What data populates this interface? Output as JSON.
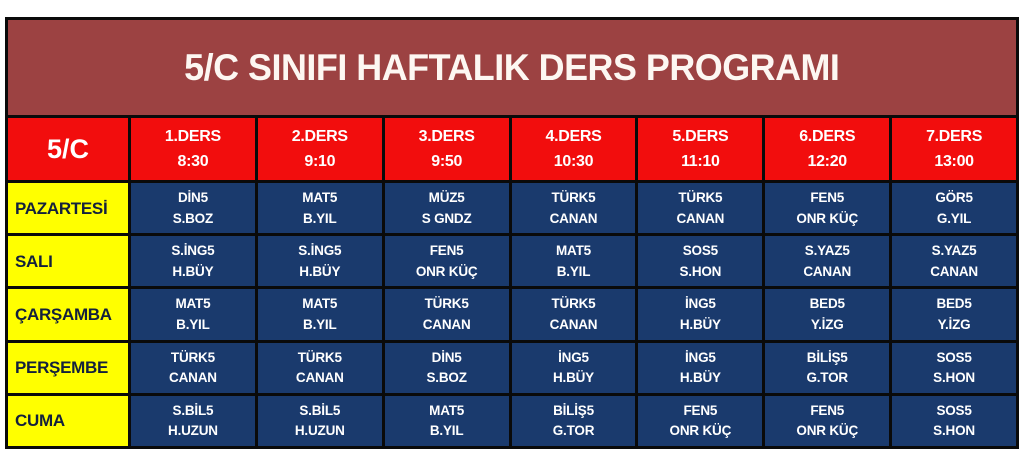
{
  "title": "5/C SINIFI HAFTALIK DERS PROGRAMI",
  "colors": {
    "banner_bg": "#9c4242",
    "title_text": "#fdf7f2",
    "header_bg": "#f20d0d",
    "cell_bg": "#1a3a6d",
    "day_bg": "#ffff00",
    "day_text": "#13203d",
    "light_text": "#ffffff",
    "border": "#0a0a0a"
  },
  "table": {
    "class_label": "5/C",
    "periods": [
      {
        "name": "1.DERS",
        "time": "8:30"
      },
      {
        "name": "2.DERS",
        "time": "9:10"
      },
      {
        "name": "3.DERS",
        "time": "9:50"
      },
      {
        "name": "4.DERS",
        "time": "10:30"
      },
      {
        "name": "5.DERS",
        "time": "11:10"
      },
      {
        "name": "6.DERS",
        "time": "12:20"
      },
      {
        "name": "7.DERS",
        "time": "13:00"
      }
    ],
    "rows": [
      {
        "day": "PAZARTESİ",
        "lessons": [
          {
            "subject": "DİN5",
            "teacher": "S.BOZ"
          },
          {
            "subject": "MAT5",
            "teacher": "B.YIL"
          },
          {
            "subject": "MÜZ5",
            "teacher": "S GNDZ"
          },
          {
            "subject": "TÜRK5",
            "teacher": "CANAN"
          },
          {
            "subject": "TÜRK5",
            "teacher": "CANAN"
          },
          {
            "subject": "FEN5",
            "teacher": "ONR KÜÇ"
          },
          {
            "subject": "GÖR5",
            "teacher": "G.YIL"
          }
        ]
      },
      {
        "day": "SALI",
        "lessons": [
          {
            "subject": "S.İNG5",
            "teacher": "H.BÜY"
          },
          {
            "subject": "S.İNG5",
            "teacher": "H.BÜY"
          },
          {
            "subject": "FEN5",
            "teacher": "ONR KÜÇ"
          },
          {
            "subject": "MAT5",
            "teacher": "B.YIL"
          },
          {
            "subject": "SOS5",
            "teacher": "S.HON"
          },
          {
            "subject": "S.YAZ5",
            "teacher": "CANAN"
          },
          {
            "subject": "S.YAZ5",
            "teacher": "CANAN"
          }
        ]
      },
      {
        "day": "ÇARŞAMBA",
        "lessons": [
          {
            "subject": "MAT5",
            "teacher": "B.YIL"
          },
          {
            "subject": "MAT5",
            "teacher": "B.YIL"
          },
          {
            "subject": "TÜRK5",
            "teacher": "CANAN"
          },
          {
            "subject": "TÜRK5",
            "teacher": "CANAN"
          },
          {
            "subject": "İNG5",
            "teacher": "H.BÜY"
          },
          {
            "subject": "BED5",
            "teacher": "Y.İZG"
          },
          {
            "subject": "BED5",
            "teacher": "Y.İZG"
          }
        ]
      },
      {
        "day": "PERŞEMBE",
        "lessons": [
          {
            "subject": "TÜRK5",
            "teacher": "CANAN"
          },
          {
            "subject": "TÜRK5",
            "teacher": "CANAN"
          },
          {
            "subject": "DİN5",
            "teacher": "S.BOZ"
          },
          {
            "subject": "İNG5",
            "teacher": "H.BÜY"
          },
          {
            "subject": "İNG5",
            "teacher": "H.BÜY"
          },
          {
            "subject": "BİLİŞ5",
            "teacher": "G.TOR"
          },
          {
            "subject": "SOS5",
            "teacher": "S.HON"
          }
        ]
      },
      {
        "day": "CUMA",
        "lessons": [
          {
            "subject": "S.BİL5",
            "teacher": "H.UZUN"
          },
          {
            "subject": "S.BİL5",
            "teacher": "H.UZUN"
          },
          {
            "subject": "MAT5",
            "teacher": "B.YIL"
          },
          {
            "subject": "BİLİŞ5",
            "teacher": "G.TOR"
          },
          {
            "subject": "FEN5",
            "teacher": "ONR KÜÇ"
          },
          {
            "subject": "FEN5",
            "teacher": "ONR KÜÇ"
          },
          {
            "subject": "SOS5",
            "teacher": "S.HON"
          }
        ]
      }
    ]
  }
}
